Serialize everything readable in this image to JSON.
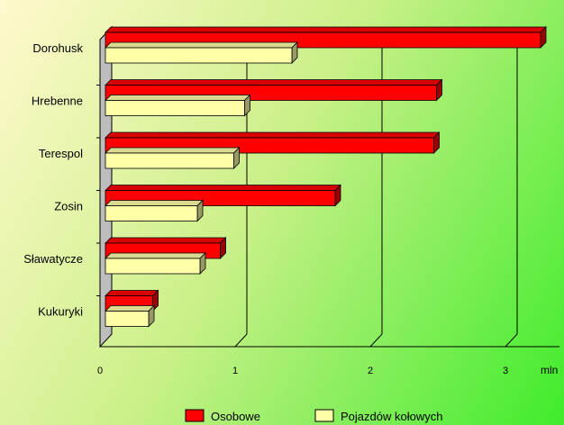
{
  "chart_data": {
    "type": "bar",
    "orientation": "horizontal",
    "categories": [
      "Dorohusk",
      "Hrebenne",
      "Terespol",
      "Zosin",
      "Sławatycze",
      "Kukuryki"
    ],
    "series": [
      {
        "name": "Osobowe",
        "color": "#ff0000",
        "values": [
          3.22,
          2.45,
          2.43,
          1.7,
          0.85,
          0.35
        ]
      },
      {
        "name": "Pojazdów kołowych",
        "color": "#ffffa8",
        "values": [
          1.38,
          1.03,
          0.95,
          0.68,
          0.7,
          0.32
        ]
      }
    ],
    "xlim": [
      0,
      3.4
    ],
    "xticks": [
      0,
      1,
      2,
      3
    ],
    "xunit": "mln",
    "grid": true,
    "legend_position": "bottom",
    "style": "3d"
  }
}
